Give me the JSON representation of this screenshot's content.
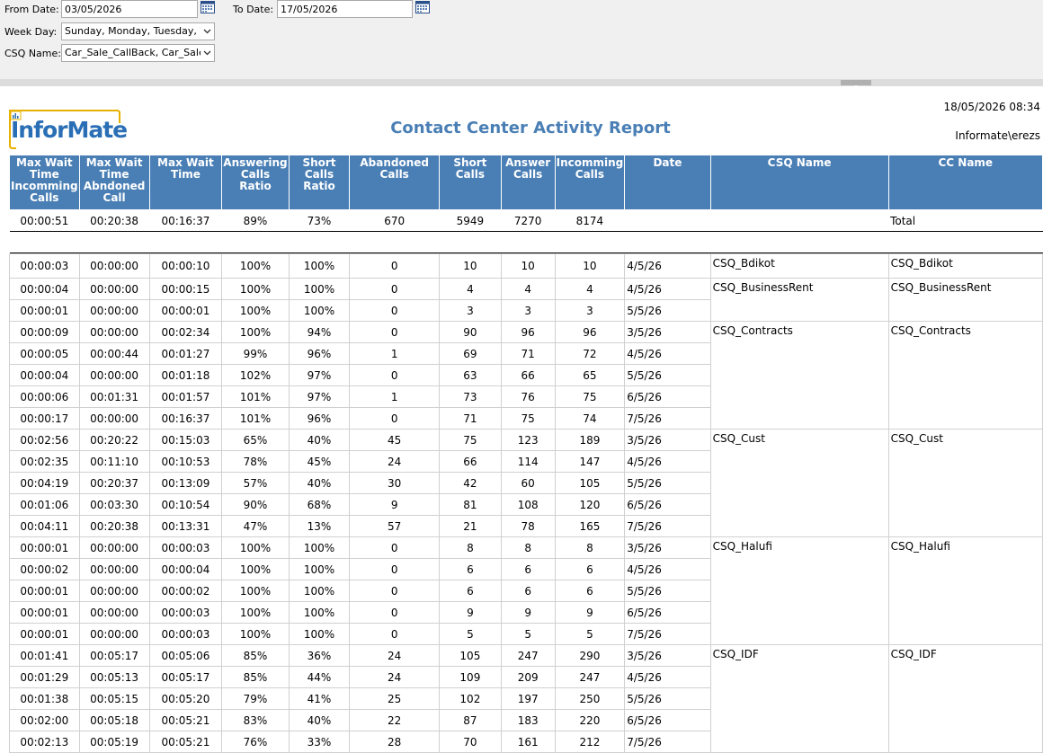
{
  "params": {
    "from_label": "From Date:",
    "from_value": "03/05/2026",
    "to_label": "To Date:",
    "to_value": "17/05/2026",
    "weekday_label": "Week Day:",
    "weekday_value": "Sunday, Monday, Tuesday, W",
    "csq_label": "CSQ Name:",
    "csq_value": "Car_Sale_CallBack, Car_Sales,"
  },
  "report": {
    "logo_text": "InforMate",
    "title": "Contact Center Activity Report",
    "datetime": "18/05/2026 08:34",
    "user": "Informate\\erezs"
  },
  "columns": [
    "Max Wait Time Incomming Calls",
    "Max Wait Time Abndoned Call",
    "Max Wait Time",
    "Answering Calls Ratio",
    "Short Calls Ratio",
    "Abandoned Calls",
    "Short Calls",
    "Answer Calls",
    "Incomming Calls",
    "Date",
    "CSQ Name",
    "CC Name"
  ],
  "total": [
    "00:00:51",
    "00:20:38",
    "00:16:37",
    "89%",
    "73%",
    "670",
    "5949",
    "7270",
    "8174",
    "",
    "",
    "Total"
  ],
  "groups": [
    {
      "csq": "CSQ_Bdikot",
      "cc": "CSQ_Bdikot",
      "rows": [
        [
          "00:00:03",
          "00:00:00",
          "00:00:10",
          "100%",
          "100%",
          "0",
          "10",
          "10",
          "10",
          "4/5/26"
        ]
      ]
    },
    {
      "csq": "CSQ_BusinessRent",
      "cc": "CSQ_BusinessRent",
      "rows": [
        [
          "00:00:04",
          "00:00:00",
          "00:00:15",
          "100%",
          "100%",
          "0",
          "4",
          "4",
          "4",
          "4/5/26"
        ],
        [
          "00:00:01",
          "00:00:00",
          "00:00:01",
          "100%",
          "100%",
          "0",
          "3",
          "3",
          "3",
          "5/5/26"
        ]
      ]
    },
    {
      "csq": "CSQ_Contracts",
      "cc": "CSQ_Contracts",
      "rows": [
        [
          "00:00:09",
          "00:00:00",
          "00:02:34",
          "100%",
          "94%",
          "0",
          "90",
          "96",
          "96",
          "3/5/26"
        ],
        [
          "00:00:05",
          "00:00:44",
          "00:01:27",
          "99%",
          "96%",
          "1",
          "69",
          "71",
          "72",
          "4/5/26"
        ],
        [
          "00:00:04",
          "00:00:00",
          "00:01:18",
          "102%",
          "97%",
          "0",
          "63",
          "66",
          "65",
          "5/5/26"
        ],
        [
          "00:00:06",
          "00:01:31",
          "00:01:57",
          "101%",
          "97%",
          "1",
          "73",
          "76",
          "75",
          "6/5/26"
        ],
        [
          "00:00:17",
          "00:00:00",
          "00:16:37",
          "101%",
          "96%",
          "0",
          "71",
          "75",
          "74",
          "7/5/26"
        ]
      ]
    },
    {
      "csq": "CSQ_Cust",
      "cc": "CSQ_Cust",
      "rows": [
        [
          "00:02:56",
          "00:20:22",
          "00:15:03",
          "65%",
          "40%",
          "45",
          "75",
          "123",
          "189",
          "3/5/26"
        ],
        [
          "00:02:35",
          "00:11:10",
          "00:10:53",
          "78%",
          "45%",
          "24",
          "66",
          "114",
          "147",
          "4/5/26"
        ],
        [
          "00:04:19",
          "00:20:37",
          "00:13:09",
          "57%",
          "40%",
          "30",
          "42",
          "60",
          "105",
          "5/5/26"
        ],
        [
          "00:01:06",
          "00:03:30",
          "00:10:54",
          "90%",
          "68%",
          "9",
          "81",
          "108",
          "120",
          "6/5/26"
        ],
        [
          "00:04:11",
          "00:20:38",
          "00:13:31",
          "47%",
          "13%",
          "57",
          "21",
          "78",
          "165",
          "7/5/26"
        ]
      ]
    },
    {
      "csq": "CSQ_Halufi",
      "cc": "CSQ_Halufi",
      "rows": [
        [
          "00:00:01",
          "00:00:00",
          "00:00:03",
          "100%",
          "100%",
          "0",
          "8",
          "8",
          "8",
          "3/5/26"
        ],
        [
          "00:00:02",
          "00:00:00",
          "00:00:04",
          "100%",
          "100%",
          "0",
          "6",
          "6",
          "6",
          "4/5/26"
        ],
        [
          "00:00:01",
          "00:00:00",
          "00:00:02",
          "100%",
          "100%",
          "0",
          "6",
          "6",
          "6",
          "5/5/26"
        ],
        [
          "00:00:01",
          "00:00:00",
          "00:00:03",
          "100%",
          "100%",
          "0",
          "9",
          "9",
          "9",
          "6/5/26"
        ],
        [
          "00:00:01",
          "00:00:00",
          "00:00:03",
          "100%",
          "100%",
          "0",
          "5",
          "5",
          "5",
          "7/5/26"
        ]
      ]
    },
    {
      "csq": "CSQ_IDF",
      "cc": "CSQ_IDF",
      "rows": [
        [
          "00:01:41",
          "00:05:17",
          "00:05:06",
          "85%",
          "36%",
          "24",
          "105",
          "247",
          "290",
          "3/5/26"
        ],
        [
          "00:01:29",
          "00:05:13",
          "00:05:17",
          "85%",
          "44%",
          "24",
          "109",
          "209",
          "247",
          "4/5/26"
        ],
        [
          "00:01:38",
          "00:05:15",
          "00:05:20",
          "79%",
          "41%",
          "25",
          "102",
          "197",
          "250",
          "5/5/26"
        ],
        [
          "00:02:00",
          "00:05:18",
          "00:05:21",
          "83%",
          "40%",
          "22",
          "87",
          "183",
          "220",
          "6/5/26"
        ],
        [
          "00:02:13",
          "00:05:19",
          "00:05:21",
          "76%",
          "33%",
          "28",
          "70",
          "161",
          "212",
          "7/5/26"
        ]
      ]
    }
  ],
  "colors": {
    "header_bg": "#4a7fb5",
    "title": "#4a7fb5",
    "param_bg": "#f0f0f0"
  }
}
